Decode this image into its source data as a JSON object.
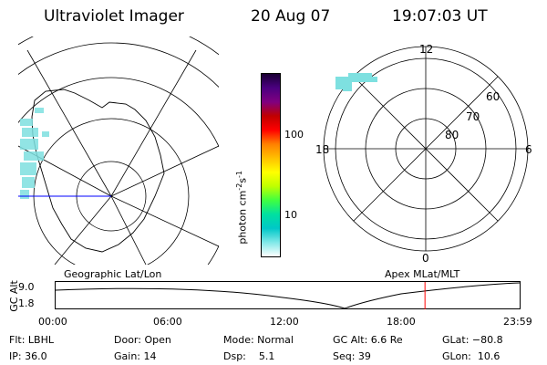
{
  "header": {
    "title": "Ultraviolet Imager",
    "date": "20 Aug 07",
    "time": "19:07:03 UT"
  },
  "colorbar": {
    "unit_label": "photon cm",
    "unit_exp1": "-2",
    "unit_mid": "s",
    "unit_exp2": "-1",
    "tick_100": "100",
    "tick_10": "10",
    "colors": [
      "#1a0033",
      "#4b0080",
      "#800080",
      "#c00000",
      "#ff0000",
      "#ff8000",
      "#ffc000",
      "#ffff00",
      "#c0ff00",
      "#40ff40",
      "#00e0a0",
      "#00c8c8",
      "#80e8e8",
      "#ffffff"
    ]
  },
  "polar_plot": {
    "mlt_labels": {
      "top": "12",
      "bottom": "0",
      "left": "18",
      "right": "6"
    },
    "mlat_labels": [
      "60",
      "70",
      "80"
    ]
  },
  "time_plot": {
    "left_title": "Geographic Lat/Lon",
    "right_title": "Apex MLat/MLT",
    "y_axis_label": "GC Alt",
    "y_ticks": [
      "9.0",
      "1.8"
    ],
    "x_ticks": [
      "00:00",
      "06:00",
      "12:00",
      "18:00",
      "23:59"
    ],
    "current_time_fraction": 0.796,
    "marker_color": "#ff0000"
  },
  "footer": {
    "row1": [
      {
        "key": "flt",
        "text": "Flt: LBHL"
      },
      {
        "key": "door",
        "text": "Door: Open"
      },
      {
        "key": "mode",
        "text": "Mode: Normal"
      },
      {
        "key": "gcalt",
        "text": "GC Alt: 6.6 Re"
      },
      {
        "key": "glat",
        "text": "GLat: −80.8"
      }
    ],
    "row2": [
      {
        "key": "ip",
        "text": "IP: 36.0"
      },
      {
        "key": "gain",
        "text": "Gain: 14"
      },
      {
        "key": "dsp",
        "text": "Dsp:    5.1"
      },
      {
        "key": "seq",
        "text": "Seq: 39"
      },
      {
        "key": "glon",
        "text": "GLon:  10.6"
      }
    ]
  }
}
